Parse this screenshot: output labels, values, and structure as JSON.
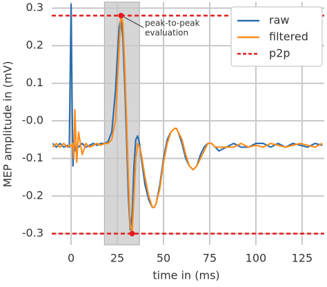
{
  "chart_data": {
    "type": "line",
    "xlabel": "time in (ms)",
    "ylabel": "MEP amplitude in (mV)",
    "xlim": [
      -10.5,
      137
    ],
    "ylim": [
      -0.33,
      0.316
    ],
    "xticks": [
      0,
      25,
      50,
      75,
      100,
      125
    ],
    "yticks": [
      0.3,
      0.2,
      0.1,
      {
        "value": 0,
        "label": "-0.0"
      },
      -0.1,
      -0.2,
      -0.3
    ],
    "grid": true,
    "legend": "upper right",
    "shaded_region": [
      18,
      37
    ],
    "annotation": {
      "lines": [
        "peak-to-peak",
        "evaluation"
      ]
    },
    "x": [
      -10,
      -8,
      -6,
      -4,
      -2,
      -1,
      0,
      0.5,
      1,
      1.5,
      2,
      3,
      4,
      6,
      8,
      10,
      12,
      14,
      16,
      18,
      20,
      22,
      24,
      25,
      26,
      27,
      28,
      29,
      30,
      31,
      32,
      33,
      34,
      35,
      36,
      37,
      38,
      40,
      42,
      44,
      45,
      46,
      48,
      50,
      52,
      54,
      56,
      57,
      58,
      60,
      62,
      64,
      66,
      68,
      70,
      72,
      74,
      76,
      78,
      80,
      84,
      88,
      92,
      96,
      100,
      104,
      108,
      112,
      116,
      120,
      124,
      128,
      132,
      136
    ],
    "series": [
      {
        "name": "raw",
        "color": "#2b6cb0",
        "values": [
          -0.06,
          -0.07,
          -0.06,
          -0.07,
          -0.065,
          -0.07,
          0.31,
          0.05,
          -0.12,
          -0.05,
          -0.08,
          -0.065,
          -0.07,
          -0.06,
          -0.07,
          -0.065,
          -0.06,
          -0.065,
          -0.06,
          -0.06,
          -0.055,
          -0.03,
          0.08,
          0.17,
          0.25,
          0.27,
          0.22,
          0.1,
          -0.05,
          -0.2,
          -0.29,
          -0.25,
          -0.12,
          -0.05,
          -0.04,
          -0.06,
          -0.1,
          -0.17,
          -0.21,
          -0.23,
          -0.23,
          -0.22,
          -0.17,
          -0.1,
          -0.05,
          -0.03,
          -0.02,
          -0.02,
          -0.03,
          -0.06,
          -0.1,
          -0.12,
          -0.13,
          -0.12,
          -0.09,
          -0.07,
          -0.06,
          -0.06,
          -0.07,
          -0.08,
          -0.07,
          -0.06,
          -0.07,
          -0.07,
          -0.06,
          -0.06,
          -0.07,
          -0.06,
          -0.07,
          -0.06,
          -0.065,
          -0.07,
          -0.06,
          -0.065
        ]
      },
      {
        "name": "filtered",
        "color": "#ff8c1a",
        "values": [
          -0.07,
          -0.06,
          -0.07,
          -0.06,
          -0.07,
          -0.065,
          -0.065,
          -0.07,
          -0.06,
          -0.1,
          0.03,
          -0.11,
          -0.03,
          -0.09,
          -0.06,
          -0.07,
          -0.065,
          -0.06,
          -0.065,
          -0.06,
          -0.06,
          -0.05,
          0.0,
          0.1,
          0.2,
          0.28,
          0.26,
          0.15,
          0.0,
          -0.15,
          -0.28,
          -0.3,
          -0.2,
          -0.1,
          -0.06,
          -0.07,
          -0.09,
          -0.15,
          -0.2,
          -0.23,
          -0.23,
          -0.22,
          -0.18,
          -0.11,
          -0.06,
          -0.03,
          -0.02,
          -0.02,
          -0.03,
          -0.05,
          -0.09,
          -0.12,
          -0.13,
          -0.12,
          -0.1,
          -0.08,
          -0.06,
          -0.06,
          -0.07,
          -0.07,
          -0.07,
          -0.07,
          -0.06,
          -0.07,
          -0.065,
          -0.07,
          -0.06,
          -0.065,
          -0.07,
          -0.065,
          -0.06,
          -0.065,
          -0.07,
          -0.06
        ]
      }
    ],
    "p2p": {
      "name": "p2p",
      "color": "#e41a1c",
      "levels": [
        0.28,
        -0.3
      ]
    },
    "peaks": {
      "x": [
        27,
        33
      ],
      "values": [
        0.28,
        -0.3
      ]
    }
  }
}
